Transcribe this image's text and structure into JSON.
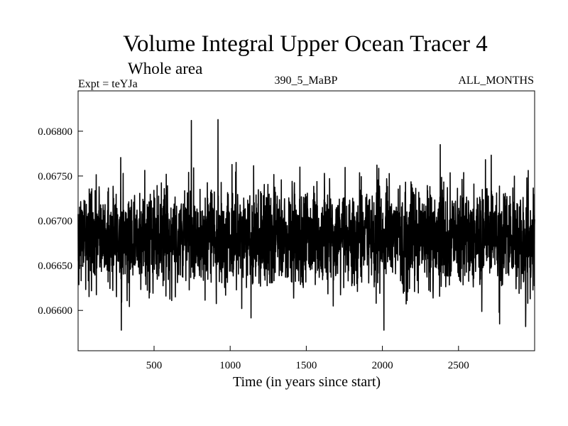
{
  "chart_data": {
    "type": "line",
    "title": "Volume Integral Upper Ocean Tracer 4",
    "subtitle": "Whole area",
    "expt_label": "Expt = teYJa",
    "run_label": "390_5_MaBP",
    "months_label": "ALL_MONTHS",
    "xlabel": "Time (in years since start)",
    "ylabel": "",
    "xlim": [
      1,
      3000
    ],
    "ylim": [
      0.06555,
      0.06845
    ],
    "xticks": [
      {
        "value": 500,
        "label": "500"
      },
      {
        "value": 1000,
        "label": "1000"
      },
      {
        "value": 1500,
        "label": "1500"
      },
      {
        "value": 2000,
        "label": "2000"
      },
      {
        "value": 2500,
        "label": "2500"
      }
    ],
    "yticks": [
      {
        "value": 0.066,
        "label": "0.06600"
      },
      {
        "value": 0.0665,
        "label": "0.06650"
      },
      {
        "value": 0.067,
        "label": "0.06700"
      },
      {
        "value": 0.0675,
        "label": "0.06750"
      },
      {
        "value": 0.068,
        "label": "0.06800"
      }
    ],
    "series": [
      {
        "name": "Volume Integral Upper Ocean Tracer 4",
        "color": "#000000",
        "sampling": "dense annual series, 1 to 3000; values oscillate about a mean with occasional extremes",
        "mean": 0.06682,
        "typical_range": [
          0.0663,
          0.0674
        ],
        "extremes": [
          {
            "x": 285,
            "y": 0.06578
          },
          {
            "x": 745,
            "y": 0.06812
          },
          {
            "x": 920,
            "y": 0.06813
          },
          {
            "x": 2010,
            "y": 0.06578
          },
          {
            "x": 2380,
            "y": 0.06785
          },
          {
            "x": 2770,
            "y": 0.06585
          },
          {
            "x": 2955,
            "y": 0.06608
          }
        ]
      }
    ]
  }
}
